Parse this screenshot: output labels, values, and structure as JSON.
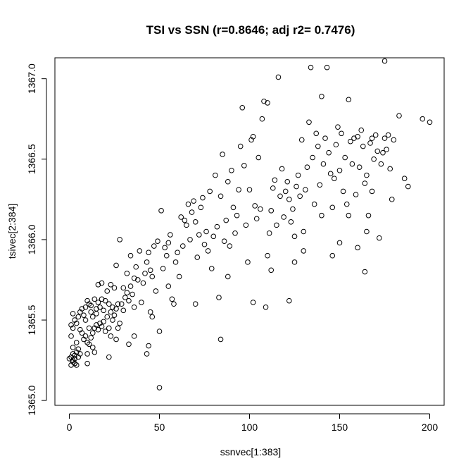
{
  "chart_data": {
    "type": "scatter",
    "title": "TSI vs SSN (r=0.8646; adj r2= 0.7476)",
    "xlabel": "ssnvec[1:383]",
    "ylabel": "tsivec[2:384]",
    "xlim": [
      -8,
      208
    ],
    "ylim": [
      1364.97,
      1367.13
    ],
    "xticks": [
      0,
      50,
      100,
      150,
      200
    ],
    "xtick_labels": [
      "0",
      "50",
      "100",
      "150",
      "200"
    ],
    "yticks": [
      1365.0,
      1365.5,
      1366.0,
      1366.5,
      1367.0
    ],
    "ytick_labels": [
      "1365.0",
      "1365.5",
      "1366.0",
      "1366.5",
      "1367.0"
    ],
    "grid": false,
    "legend": "none",
    "marker": "open-circle",
    "points": [
      [
        1,
        1365.22
      ],
      [
        2,
        1365.25
      ],
      [
        3,
        1365.23
      ],
      [
        1,
        1365.27
      ],
      [
        2,
        1365.29
      ],
      [
        3,
        1365.26
      ],
      [
        4,
        1365.22
      ],
      [
        5,
        1365.27
      ],
      [
        4,
        1365.3
      ],
      [
        2,
        1365.33
      ],
      [
        4,
        1365.36
      ],
      [
        1,
        1365.4
      ],
      [
        5,
        1365.32
      ],
      [
        3,
        1365.23
      ],
      [
        6,
        1365.29
      ],
      [
        2,
        1365.24
      ],
      [
        0,
        1365.26
      ],
      [
        3,
        1365.28
      ],
      [
        1,
        1365.47
      ],
      [
        2,
        1365.45
      ],
      [
        3,
        1365.5
      ],
      [
        4,
        1365.48
      ],
      [
        5,
        1365.52
      ],
      [
        6,
        1365.55
      ],
      [
        2,
        1365.54
      ],
      [
        7,
        1365.57
      ],
      [
        8,
        1365.53
      ],
      [
        9,
        1365.58
      ],
      [
        10,
        1365.62
      ],
      [
        11,
        1365.6
      ],
      [
        12,
        1365.55
      ],
      [
        12,
        1365.59
      ],
      [
        14,
        1365.63
      ],
      [
        15,
        1365.57
      ],
      [
        16,
        1365.61
      ],
      [
        18,
        1365.63
      ],
      [
        7,
        1365.42
      ],
      [
        8,
        1365.38
      ],
      [
        9,
        1365.4
      ],
      [
        10,
        1365.36
      ],
      [
        11,
        1365.35
      ],
      [
        12,
        1365.39
      ],
      [
        13,
        1365.42
      ],
      [
        14,
        1365.45
      ],
      [
        15,
        1365.47
      ],
      [
        16,
        1365.44
      ],
      [
        17,
        1365.48
      ],
      [
        18,
        1365.46
      ],
      [
        19,
        1365.49
      ],
      [
        20,
        1365.43
      ],
      [
        13,
        1365.33
      ],
      [
        10,
        1365.29
      ],
      [
        10,
        1365.23
      ],
      [
        14,
        1365.3
      ],
      [
        6,
        1365.44
      ],
      [
        9,
        1365.5
      ],
      [
        11,
        1365.45
      ],
      [
        13,
        1365.52
      ],
      [
        15,
        1365.54
      ],
      [
        17,
        1365.58
      ],
      [
        19,
        1365.56
      ],
      [
        20,
        1365.62
      ],
      [
        21,
        1365.52
      ],
      [
        22,
        1365.6
      ],
      [
        23,
        1365.55
      ],
      [
        24,
        1365.58
      ],
      [
        25,
        1365.53
      ],
      [
        26,
        1365.57
      ],
      [
        27,
        1365.6
      ],
      [
        24,
        1365.5
      ],
      [
        22,
        1365.45
      ],
      [
        23,
        1365.4
      ],
      [
        16,
        1365.72
      ],
      [
        18,
        1365.73
      ],
      [
        21,
        1365.68
      ],
      [
        23,
        1365.72
      ],
      [
        25,
        1365.7
      ],
      [
        22,
        1365.27
      ],
      [
        26,
        1365.38
      ],
      [
        27,
        1365.45
      ],
      [
        28,
        1365.48
      ],
      [
        29,
        1365.6
      ],
      [
        30,
        1365.56
      ],
      [
        31,
        1365.64
      ],
      [
        32,
        1365.67
      ],
      [
        33,
        1365.62
      ],
      [
        34,
        1365.71
      ],
      [
        35,
        1365.66
      ],
      [
        36,
        1365.58
      ],
      [
        33,
        1365.35
      ],
      [
        26,
        1365.84
      ],
      [
        28,
        1366.0
      ],
      [
        30,
        1365.7
      ],
      [
        32,
        1365.79
      ],
      [
        34,
        1365.9
      ],
      [
        36,
        1365.76
      ],
      [
        37,
        1365.83
      ],
      [
        38,
        1365.75
      ],
      [
        39,
        1365.93
      ],
      [
        40,
        1365.61
      ],
      [
        41,
        1365.73
      ],
      [
        42,
        1365.79
      ],
      [
        43,
        1365.86
      ],
      [
        44,
        1365.92
      ],
      [
        45,
        1365.81
      ],
      [
        46,
        1365.77
      ],
      [
        47,
        1365.96
      ],
      [
        45,
        1365.55
      ],
      [
        36,
        1365.4
      ],
      [
        43,
        1365.29
      ],
      [
        44,
        1365.34
      ],
      [
        46,
        1365.52
      ],
      [
        48,
        1365.68
      ],
      [
        49,
        1365.99
      ],
      [
        50,
        1365.43
      ],
      [
        50,
        1365.08
      ],
      [
        51,
        1366.18
      ],
      [
        52,
        1365.82
      ],
      [
        53,
        1365.95
      ],
      [
        54,
        1365.9
      ],
      [
        55,
        1365.71
      ],
      [
        56,
        1366.03
      ],
      [
        57,
        1365.63
      ],
      [
        58,
        1365.6
      ],
      [
        59,
        1365.86
      ],
      [
        55,
        1365.98
      ],
      [
        60,
        1365.92
      ],
      [
        61,
        1365.77
      ],
      [
        62,
        1366.14
      ],
      [
        63,
        1365.96
      ],
      [
        64,
        1366.12
      ],
      [
        65,
        1366.09
      ],
      [
        66,
        1366.22
      ],
      [
        67,
        1366.0
      ],
      [
        68,
        1366.17
      ],
      [
        69,
        1366.24
      ],
      [
        70,
        1366.11
      ],
      [
        71,
        1365.89
      ],
      [
        72,
        1366.03
      ],
      [
        73,
        1366.2
      ],
      [
        74,
        1366.26
      ],
      [
        75,
        1365.97
      ],
      [
        76,
        1366.05
      ],
      [
        70,
        1365.6
      ],
      [
        77,
        1365.93
      ],
      [
        78,
        1366.3
      ],
      [
        79,
        1365.82
      ],
      [
        80,
        1366.02
      ],
      [
        81,
        1366.4
      ],
      [
        82,
        1366.08
      ],
      [
        83,
        1365.64
      ],
      [
        84,
        1366.27
      ],
      [
        85,
        1366.53
      ],
      [
        86,
        1365.99
      ],
      [
        87,
        1366.12
      ],
      [
        88,
        1366.36
      ],
      [
        89,
        1365.96
      ],
      [
        90,
        1366.43
      ],
      [
        91,
        1366.2
      ],
      [
        92,
        1366.04
      ],
      [
        84,
        1365.38
      ],
      [
        88,
        1365.77
      ],
      [
        93,
        1366.15
      ],
      [
        94,
        1366.31
      ],
      [
        95,
        1366.58
      ],
      [
        96,
        1366.82
      ],
      [
        97,
        1366.46
      ],
      [
        98,
        1366.09
      ],
      [
        99,
        1365.86
      ],
      [
        100,
        1366.31
      ],
      [
        101,
        1366.62
      ],
      [
        102,
        1366.64
      ],
      [
        103,
        1366.21
      ],
      [
        104,
        1366.13
      ],
      [
        105,
        1366.51
      ],
      [
        106,
        1366.19
      ],
      [
        107,
        1366.75
      ],
      [
        108,
        1366.86
      ],
      [
        102,
        1365.61
      ],
      [
        109,
        1365.58
      ],
      [
        110,
        1366.85
      ],
      [
        111,
        1366.04
      ],
      [
        112,
        1366.18
      ],
      [
        113,
        1366.32
      ],
      [
        114,
        1366.37
      ],
      [
        115,
        1366.09
      ],
      [
        116,
        1367.01
      ],
      [
        117,
        1366.27
      ],
      [
        118,
        1366.44
      ],
      [
        119,
        1366.14
      ],
      [
        120,
        1366.3
      ],
      [
        121,
        1366.36
      ],
      [
        122,
        1366.25
      ],
      [
        123,
        1366.11
      ],
      [
        124,
        1366.19
      ],
      [
        125,
        1366.02
      ],
      [
        110,
        1365.9
      ],
      [
        112,
        1365.81
      ],
      [
        126,
        1366.33
      ],
      [
        127,
        1366.4
      ],
      [
        128,
        1366.27
      ],
      [
        129,
        1366.62
      ],
      [
        130,
        1366.05
      ],
      [
        131,
        1366.31
      ],
      [
        132,
        1366.45
      ],
      [
        133,
        1366.73
      ],
      [
        134,
        1367.07
      ],
      [
        135,
        1366.51
      ],
      [
        136,
        1366.22
      ],
      [
        137,
        1366.66
      ],
      [
        138,
        1366.58
      ],
      [
        139,
        1366.34
      ],
      [
        140,
        1366.89
      ],
      [
        141,
        1366.47
      ],
      [
        125,
        1365.86
      ],
      [
        130,
        1365.93
      ],
      [
        142,
        1366.63
      ],
      [
        143,
        1367.07
      ],
      [
        144,
        1366.54
      ],
      [
        145,
        1366.41
      ],
      [
        146,
        1366.2
      ],
      [
        147,
        1366.38
      ],
      [
        148,
        1366.59
      ],
      [
        149,
        1366.7
      ],
      [
        150,
        1366.43
      ],
      [
        151,
        1366.66
      ],
      [
        152,
        1366.3
      ],
      [
        153,
        1366.51
      ],
      [
        154,
        1366.22
      ],
      [
        155,
        1366.87
      ],
      [
        156,
        1366.61
      ],
      [
        157,
        1366.47
      ],
      [
        140,
        1366.15
      ],
      [
        146,
        1365.9
      ],
      [
        158,
        1366.63
      ],
      [
        159,
        1366.28
      ],
      [
        160,
        1366.64
      ],
      [
        161,
        1366.45
      ],
      [
        162,
        1366.68
      ],
      [
        163,
        1366.58
      ],
      [
        164,
        1366.35
      ],
      [
        165,
        1366.4
      ],
      [
        166,
        1366.15
      ],
      [
        167,
        1366.6
      ],
      [
        168,
        1366.3
      ],
      [
        169,
        1366.5
      ],
      [
        170,
        1366.65
      ],
      [
        171,
        1366.55
      ],
      [
        172,
        1366.01
      ],
      [
        173,
        1366.47
      ],
      [
        160,
        1365.95
      ],
      [
        164,
        1365.8
      ],
      [
        174,
        1366.54
      ],
      [
        175,
        1367.11
      ],
      [
        176,
        1366.56
      ],
      [
        177,
        1366.65
      ],
      [
        178,
        1366.44
      ],
      [
        179,
        1366.25
      ],
      [
        180,
        1366.62
      ],
      [
        183,
        1366.77
      ],
      [
        186,
        1366.38
      ],
      [
        188,
        1366.33
      ],
      [
        196,
        1366.75
      ],
      [
        200,
        1366.73
      ],
      [
        150,
        1365.98
      ],
      [
        155,
        1366.15
      ],
      [
        165,
        1366.05
      ],
      [
        175,
        1366.63
      ],
      [
        168,
        1366.63
      ],
      [
        122,
        1365.62
      ]
    ]
  }
}
